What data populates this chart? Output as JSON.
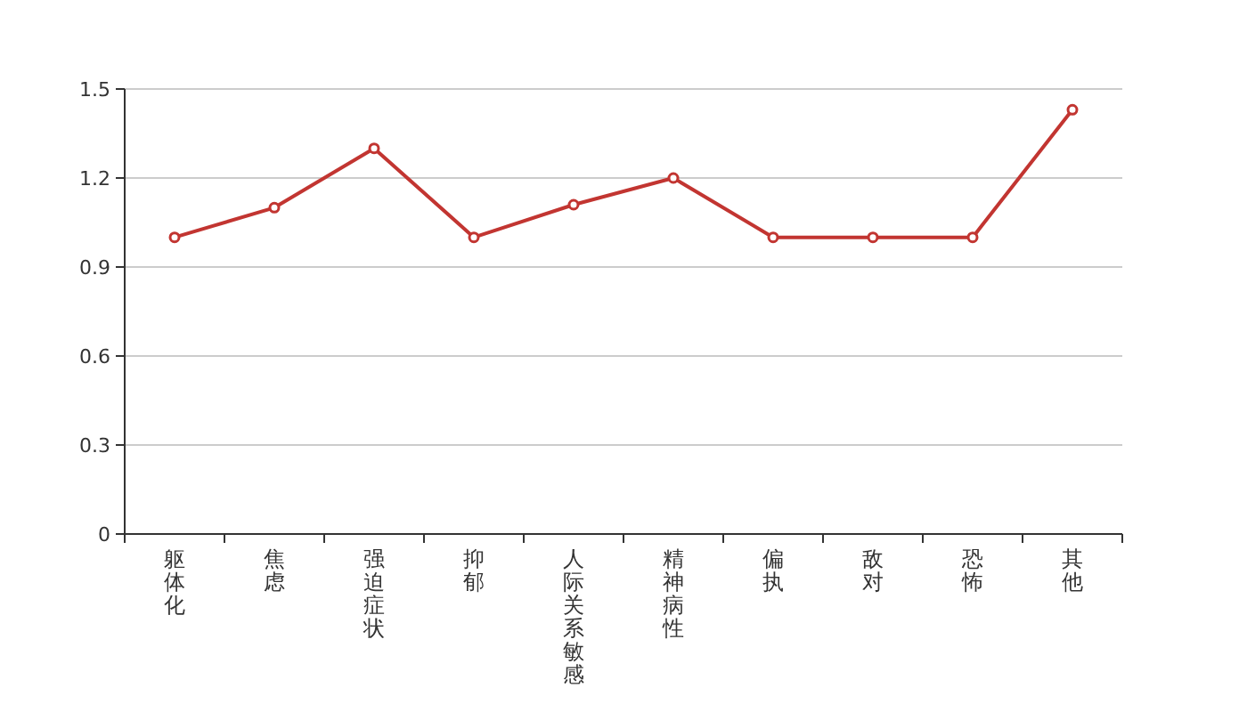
{
  "chart_data": {
    "type": "line",
    "categories": [
      "躯体化",
      "焦虑",
      "强迫症状",
      "抑郁",
      "人际关系敏感",
      "精神病性",
      "偏执",
      "敌对",
      "恐怖",
      "其他"
    ],
    "series": [
      {
        "color": "#c23531",
        "values": [
          1.0,
          1.1,
          1.3,
          1.0,
          1.11,
          1.2,
          1.0,
          1.0,
          1.0,
          1.43
        ]
      }
    ],
    "ylim": [
      0,
      1.5
    ],
    "yticks": [
      0,
      0.3,
      0.6,
      0.9,
      1.2,
      1.5
    ],
    "grid": "y",
    "marker": "circle",
    "line_style": "solid"
  }
}
